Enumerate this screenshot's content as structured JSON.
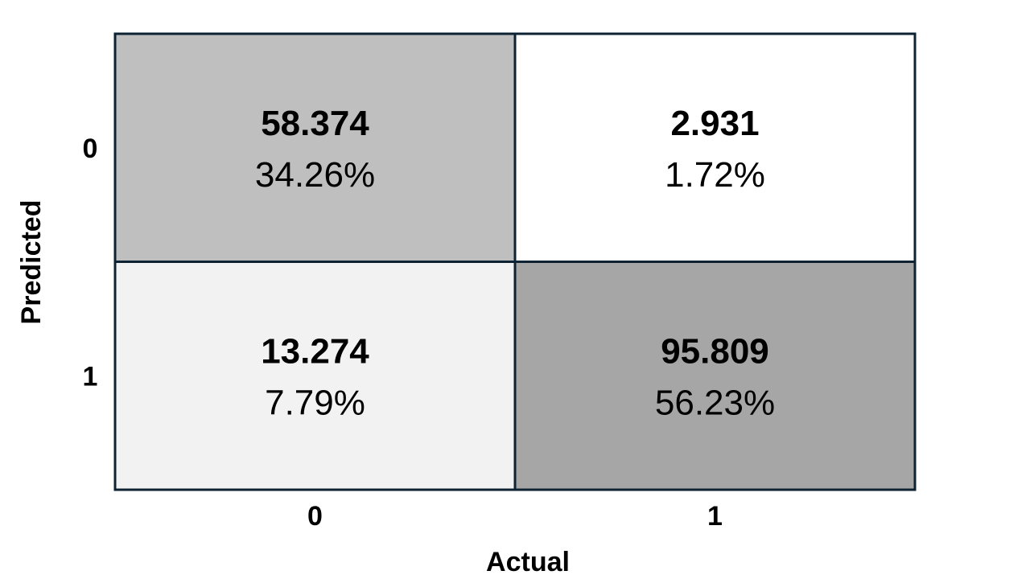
{
  "chart_data": {
    "type": "heatmap",
    "title": "",
    "xlabel": "Actual",
    "ylabel": "Predicted",
    "x_categories": [
      "0",
      "1"
    ],
    "y_categories": [
      "0",
      "1"
    ],
    "cells": [
      {
        "predicted": "0",
        "actual": "0",
        "value": 58.374,
        "value_label": "58.374",
        "percent": 34.26,
        "percent_label": "34.26%",
        "color": "#bfbfbf"
      },
      {
        "predicted": "0",
        "actual": "1",
        "value": 2.931,
        "value_label": "2.931",
        "percent": 1.72,
        "percent_label": "1.72%",
        "color": "#ffffff"
      },
      {
        "predicted": "1",
        "actual": "0",
        "value": 13.274,
        "value_label": "13.274",
        "percent": 7.79,
        "percent_label": "7.79%",
        "color": "#f2f2f2"
      },
      {
        "predicted": "1",
        "actual": "1",
        "value": 95.809,
        "value_label": "95.809",
        "percent": 56.23,
        "percent_label": "56.23%",
        "color": "#a6a6a6"
      }
    ],
    "grid_color": "#0d2233"
  }
}
